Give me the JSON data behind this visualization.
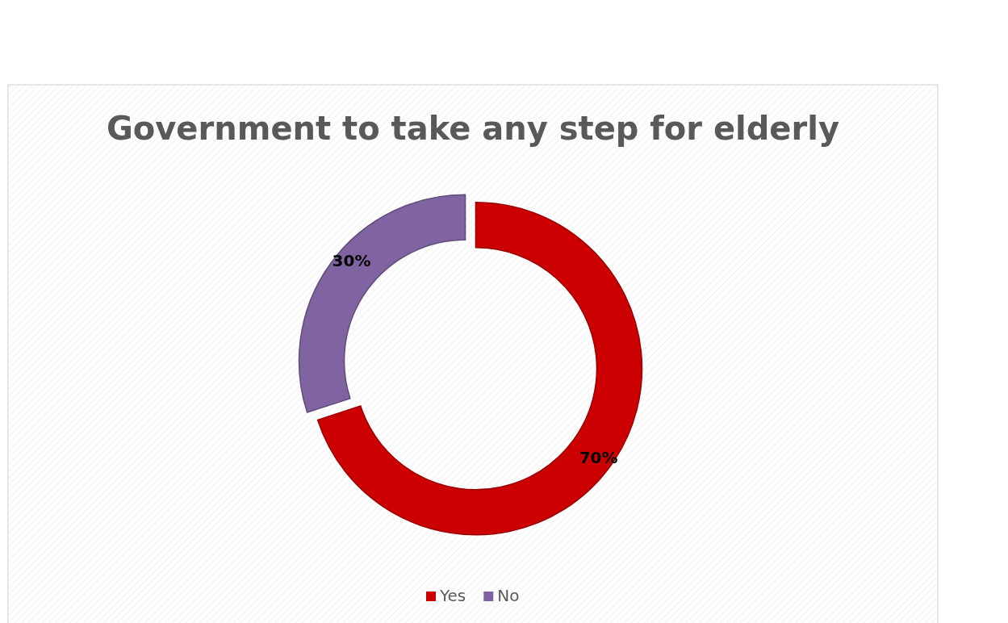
{
  "chart_data": {
    "type": "donut",
    "title": "Government to take any step for elderly",
    "categories": [
      "Yes",
      "No"
    ],
    "values": [
      70,
      30
    ],
    "colors": [
      "#cc0000",
      "#8064a2"
    ],
    "value_labels": [
      "70%",
      "30%"
    ],
    "legend": "bottom"
  }
}
